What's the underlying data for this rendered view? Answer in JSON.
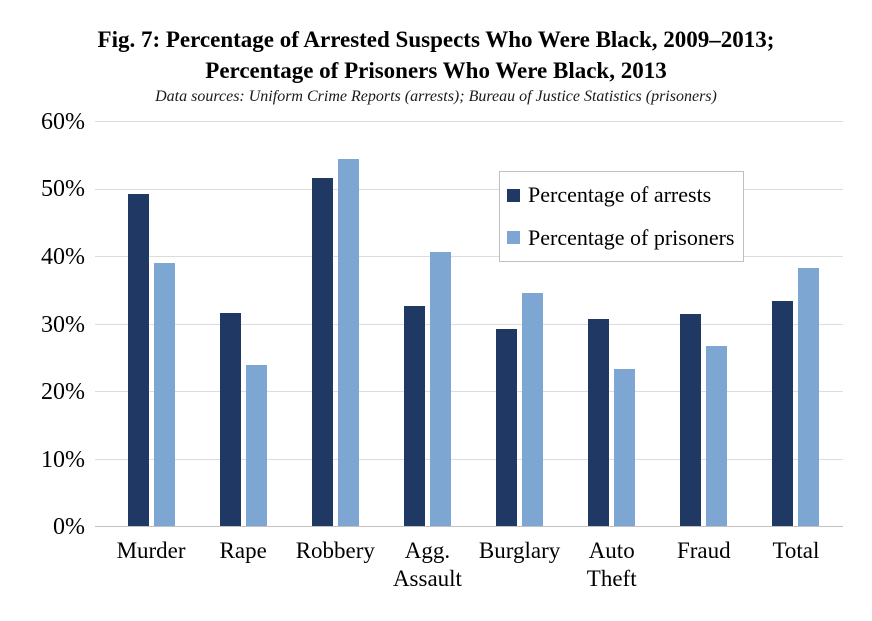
{
  "figure": {
    "title_line1": "Fig. 7: Percentage of Arrested Suspects Who Were Black, 2009–2013;",
    "title_line2": "Percentage of Prisoners Who Were Black, 2013",
    "subtitle": "Data sources: Uniform Crime Reports (arrests); Bureau of Justice Statistics (prisoners)"
  },
  "chart_data": {
    "type": "bar",
    "title": "Fig. 7: Percentage of Arrested Suspects Who Were Black, 2009–2013; Percentage of Prisoners Who Were Black, 2013",
    "subtitle": "Data sources: Uniform Crime Reports (arrests); Bureau of Justice Statistics (prisoners)",
    "categories": [
      "Murder",
      "Rape",
      "Robbery",
      "Agg. Assault",
      "Burglary",
      "Auto Theft",
      "Fraud",
      "Total"
    ],
    "tick_label_lines": [
      [
        "Murder"
      ],
      [
        "Rape"
      ],
      [
        "Robbery"
      ],
      [
        "Agg.",
        "Assault"
      ],
      [
        "Burglary"
      ],
      [
        "Auto",
        "Theft"
      ],
      [
        "Fraud"
      ],
      [
        "Total"
      ]
    ],
    "series": [
      {
        "name": "Percentage of arrests",
        "color": "#1F3864",
        "values": [
          49.4,
          31.7,
          51.7,
          32.8,
          29.3,
          30.8,
          31.5,
          33.5
        ]
      },
      {
        "name": "Percentage of prisoners",
        "color": "#7EA6D3",
        "values": [
          39.1,
          24.0,
          54.5,
          40.8,
          34.6,
          23.4,
          26.8,
          38.3
        ]
      }
    ],
    "ylim": [
      0,
      60
    ],
    "ytick_labels": [
      "0%",
      "10%",
      "20%",
      "30%",
      "40%",
      "50%",
      "60%"
    ],
    "grid": true,
    "legend_position": "upper-right-inside"
  },
  "styles": {
    "arrests_color": "#1F3864",
    "prisoners_color": "#7EA6D3",
    "gridline_color": "#DCDCDC",
    "axis_line_color": "#C0C0C0",
    "legend_border_color": "#BFBFBF",
    "background": "#FFFFFF",
    "text_color": "#000000"
  }
}
